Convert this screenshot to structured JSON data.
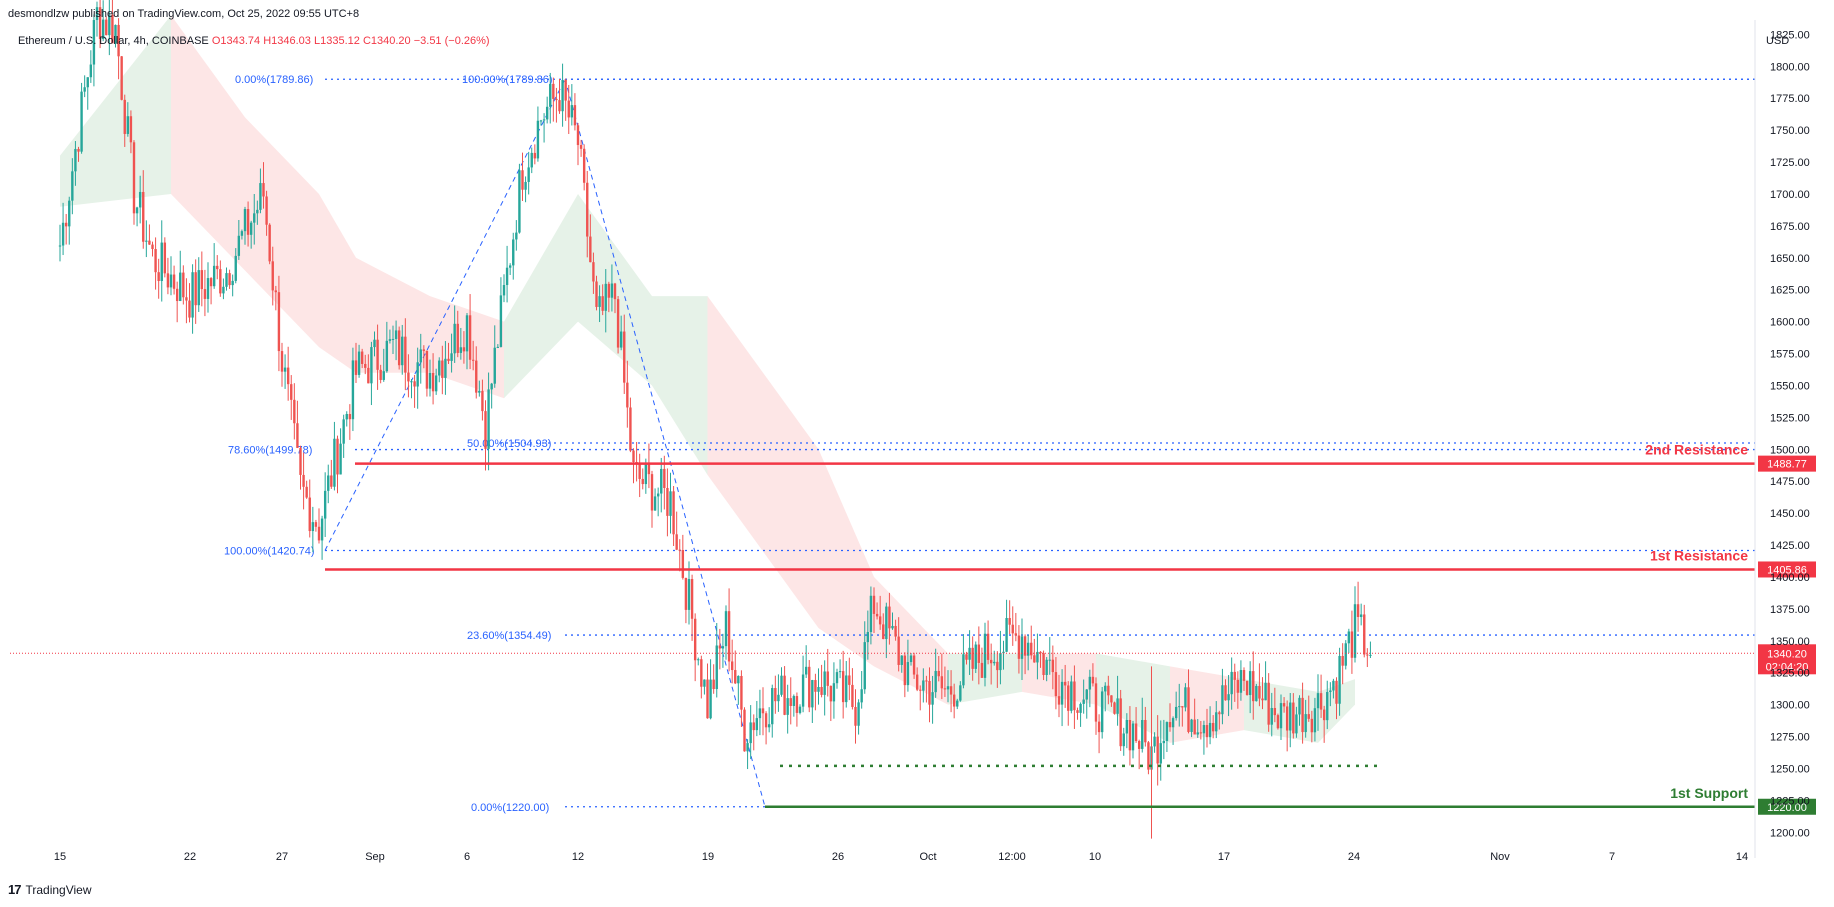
{
  "attribution": "desmondlzw published on TradingView.com, Oct 25, 2022 09:55 UTC+8",
  "legend": {
    "symbol": "Ethereum / U.S. Dollar, 4h, COINBASE",
    "open": "O1343.74",
    "high": "H1346.03",
    "low": "L1335.12",
    "close": "C1340.20",
    "change": "−3.51 (−0.26%)"
  },
  "unit": "USD",
  "footer": {
    "logo": "17",
    "brand": "TradingView"
  },
  "colors": {
    "up": "#26a69a",
    "down": "#ef5350",
    "resistance": "#f23645",
    "support": "#2e7d32",
    "fib": "#2962ff",
    "fib_text": "#2962ff",
    "cloud_bull": "#e6f2e8",
    "cloud_bear": "#fde6e6"
  },
  "chart_data": {
    "type": "candlestick",
    "title": "Ethereum / U.S. Dollar, 4h, COINBASE",
    "ylim": [
      1190,
      1830
    ],
    "y_ticks": [
      1200,
      1225,
      1250,
      1275,
      1300,
      1325,
      1350,
      1375,
      1400,
      1425,
      1450,
      1475,
      1500,
      1525,
      1550,
      1575,
      1600,
      1625,
      1650,
      1675,
      1700,
      1725,
      1750,
      1775,
      1800,
      1825
    ],
    "y_tick_labels_override": {
      "1225": "1225.00",
      "1400": "1400.00",
      "1500": "1500.00",
      "1350": "1350.00"
    },
    "x_ticks": [
      "15",
      "22",
      "27",
      "Sep",
      "6",
      "12",
      "19",
      "26",
      "Oct",
      "12:00",
      "10",
      "17",
      "24",
      "Nov",
      "7",
      "14"
    ],
    "candle_anchors": [
      [
        "Aug 15",
        1660
      ],
      [
        "Aug 17",
        1840
      ],
      [
        "Aug 18",
        1830
      ],
      [
        "Aug 19",
        1700
      ],
      [
        "Aug 20",
        1650
      ],
      [
        "Aug 22",
        1620
      ],
      [
        "Aug 24",
        1640
      ],
      [
        "Aug 26",
        1700
      ],
      [
        "Aug 27",
        1570
      ],
      [
        "Aug 28",
        1470
      ],
      [
        "Aug 29",
        1440
      ],
      [
        "Aug 31",
        1560
      ],
      [
        "Sep 2",
        1580
      ],
      [
        "Sep 4",
        1560
      ],
      [
        "Sep 6",
        1600
      ],
      [
        "Sep 7",
        1520
      ],
      [
        "Sep 9",
        1720
      ],
      [
        "Sep 10",
        1760
      ],
      [
        "Sep 11",
        1780
      ],
      [
        "Sep 12",
        1740
      ],
      [
        "Sep 13",
        1600
      ],
      [
        "Sep 14",
        1620
      ],
      [
        "Sep 15",
        1480
      ],
      [
        "Sep 17",
        1460
      ],
      [
        "Sep 19",
        1300
      ],
      [
        "Sep 20",
        1360
      ],
      [
        "Sep 21",
        1280
      ],
      [
        "Sep 22",
        1300
      ],
      [
        "Sep 25",
        1320
      ],
      [
        "Sep 27",
        1300
      ],
      [
        "Sep 28",
        1380
      ],
      [
        "Sep 30",
        1320
      ],
      [
        "Oct 2",
        1310
      ],
      [
        "Oct 4",
        1340
      ],
      [
        "Oct 6",
        1355
      ],
      [
        "Oct 8",
        1320
      ],
      [
        "Oct 10",
        1300
      ],
      [
        "Oct 12",
        1280
      ],
      [
        "Oct 13",
        1260
      ],
      [
        "Oct 14",
        1300
      ],
      [
        "Oct 16",
        1290
      ],
      [
        "Oct 18",
        1320
      ],
      [
        "Oct 20",
        1290
      ],
      [
        "Oct 22",
        1300
      ],
      [
        "Oct 23",
        1320
      ],
      [
        "Oct 24",
        1360
      ],
      [
        "Oct 25",
        1340.2
      ]
    ],
    "horizontal_levels": [
      {
        "name": "2nd Resistance",
        "value": 1488.77,
        "label": "1488.77",
        "kind": "resistance"
      },
      {
        "name": "1st Resistance",
        "value": 1405.86,
        "label": "1405.86",
        "kind": "resistance"
      },
      {
        "name": "1st Support",
        "value": 1220.0,
        "label": "1220.00",
        "kind": "support"
      }
    ],
    "fib_levels": [
      {
        "label": "0.00%(1789.86)",
        "value": 1789.86
      },
      {
        "label": "100.00%(1789.86)",
        "value": 1789.86
      },
      {
        "label": "78.60%(1499.78)",
        "value": 1499.78
      },
      {
        "label": "50.00%(1504.93)",
        "value": 1504.93
      },
      {
        "label": "100.00%(1420.74)",
        "value": 1420.74
      },
      {
        "label": "23.60%(1354.49)",
        "value": 1354.49
      },
      {
        "label": "0.00%(1220.00)",
        "value": 1220.0
      }
    ],
    "current_price": {
      "value": 1340.2,
      "label": "1340.20",
      "countdown": "02:04:20"
    },
    "support_dotted": 1252,
    "annotations": [
      "2nd Resistance",
      "1st Resistance",
      "1st Support"
    ]
  }
}
